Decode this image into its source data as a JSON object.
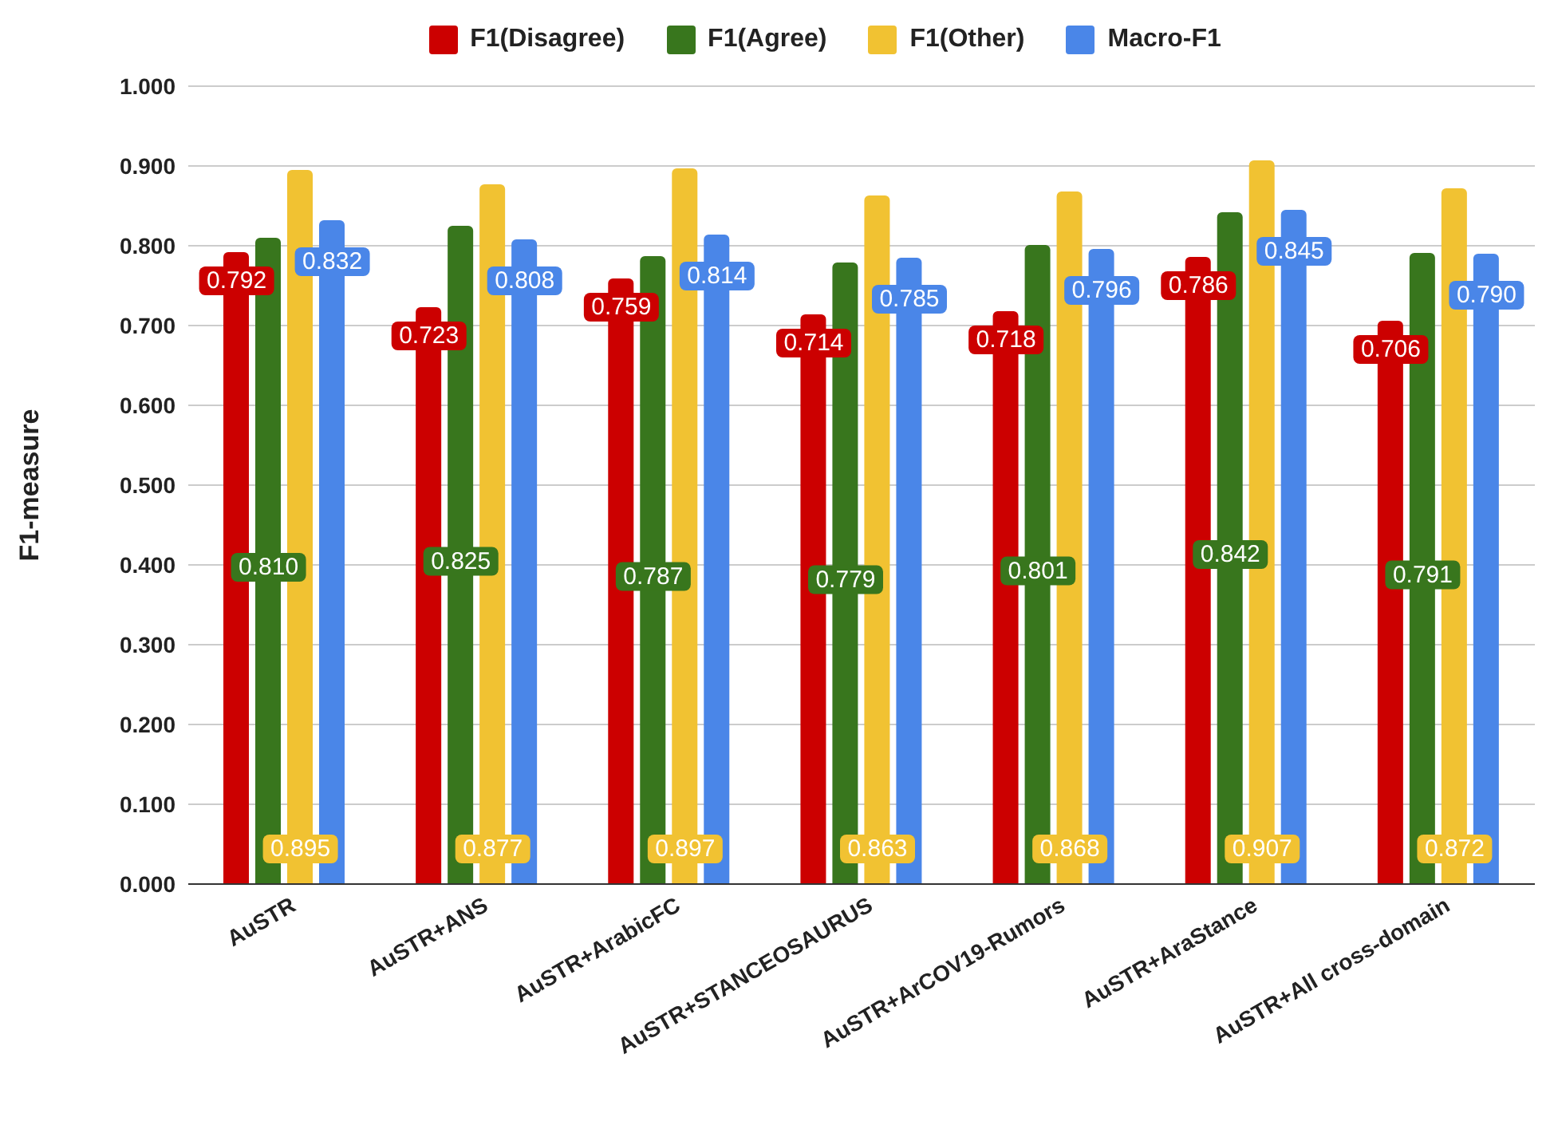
{
  "chart_data": {
    "type": "bar",
    "ylabel": "F1-measure",
    "categories": [
      "AuSTR",
      "AuSTR+ANS",
      "AuSTR+ArabicFC",
      "AuSTR+STANCEOSAURUS",
      "AuSTR+ArCOV19-Rumors",
      "AuSTR+AraStance",
      "AuSTR+All cross-domain"
    ],
    "series": [
      {
        "name": "F1(Disagree)",
        "color": "#cc0000",
        "values": [
          0.792,
          0.723,
          0.759,
          0.714,
          0.718,
          0.786,
          0.706
        ],
        "value_labels": [
          "0.792",
          "0.723",
          "0.759",
          "0.714",
          "0.718",
          "0.786",
          "0.706"
        ]
      },
      {
        "name": "F1(Agree)",
        "color": "#38761d",
        "values": [
          0.81,
          0.825,
          0.787,
          0.779,
          0.801,
          0.842,
          0.791
        ],
        "value_labels": [
          "0.810",
          "0.825",
          "0.787",
          "0.779",
          "0.801",
          "0.842",
          "0.791"
        ]
      },
      {
        "name": "F1(Other)",
        "color": "#f1c232",
        "values": [
          0.895,
          0.877,
          0.897,
          0.863,
          0.868,
          0.907,
          0.872
        ],
        "value_labels": [
          "0.895",
          "0.877",
          "0.897",
          "0.863",
          "0.868",
          "0.907",
          "0.872"
        ]
      },
      {
        "name": "Macro-F1",
        "color": "#4a86e8",
        "values": [
          0.832,
          0.808,
          0.814,
          0.785,
          0.796,
          0.845,
          0.79
        ],
        "value_labels": [
          "0.832",
          "0.808",
          "0.814",
          "0.785",
          "0.796",
          "0.845",
          "0.790"
        ]
      }
    ],
    "ylim": [
      0,
      1
    ],
    "yticks": [
      {
        "value": 0,
        "label": "0.000"
      },
      {
        "value": 0.1,
        "label": "0.100"
      },
      {
        "value": 0.2,
        "label": "0.200"
      },
      {
        "value": 0.3,
        "label": "0.300"
      },
      {
        "value": 0.4,
        "label": "0.400"
      },
      {
        "value": 0.5,
        "label": "0.500"
      },
      {
        "value": 0.6,
        "label": "0.600"
      },
      {
        "value": 0.7,
        "label": "0.700"
      },
      {
        "value": 0.8,
        "label": "0.800"
      },
      {
        "value": 0.9,
        "label": "0.900"
      },
      {
        "value": 1,
        "label": "1.000"
      }
    ],
    "grid": "y",
    "legend": "top"
  }
}
